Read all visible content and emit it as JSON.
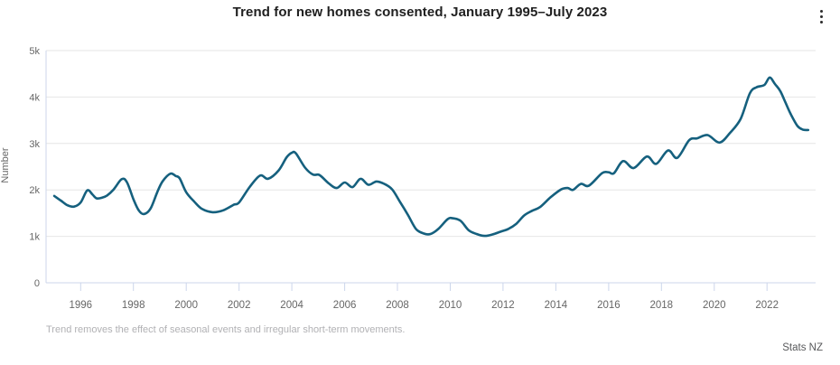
{
  "header": {
    "title": "Trend for new homes consented, January 1995–July 2023",
    "menu_icon": "kebab-menu-icon"
  },
  "chart_data": {
    "type": "line",
    "title": "Trend for new homes consented, January 1995–July 2023",
    "xlabel": "",
    "ylabel": "Number",
    "xlim": [
      1994.69,
      2023.84
    ],
    "ylim": [
      0,
      5000
    ],
    "grid": true,
    "legend": "none",
    "x_ticks": [
      1996,
      1998,
      2000,
      2002,
      2004,
      2006,
      2008,
      2010,
      2012,
      2014,
      2016,
      2018,
      2020,
      2022
    ],
    "y_ticks": [
      {
        "value": 0,
        "label": "0"
      },
      {
        "value": 1000,
        "label": "1k"
      },
      {
        "value": 2000,
        "label": "2k"
      },
      {
        "value": 3000,
        "label": "3k"
      },
      {
        "value": 4000,
        "label": "4k"
      },
      {
        "value": 5000,
        "label": "5k"
      }
    ],
    "line_color": "#15607E",
    "grid_color": "#e6e6e6",
    "axis_color": "#ccd6eb",
    "series": [
      {
        "name": "Trend for new homes consented",
        "points": [
          [
            1995.0,
            1870
          ],
          [
            1995.25,
            1770
          ],
          [
            1995.5,
            1670
          ],
          [
            1995.75,
            1640
          ],
          [
            1996.0,
            1730
          ],
          [
            1996.25,
            1990
          ],
          [
            1996.45,
            1900
          ],
          [
            1996.6,
            1820
          ],
          [
            1996.8,
            1830
          ],
          [
            1997.0,
            1880
          ],
          [
            1997.25,
            2010
          ],
          [
            1997.55,
            2230
          ],
          [
            1997.75,
            2170
          ],
          [
            1998.0,
            1800
          ],
          [
            1998.2,
            1560
          ],
          [
            1998.4,
            1480
          ],
          [
            1998.65,
            1600
          ],
          [
            1998.9,
            1950
          ],
          [
            1999.1,
            2180
          ],
          [
            1999.4,
            2350
          ],
          [
            1999.6,
            2300
          ],
          [
            1999.75,
            2250
          ],
          [
            2000.0,
            1950
          ],
          [
            2000.3,
            1750
          ],
          [
            2000.6,
            1590
          ],
          [
            2001.0,
            1520
          ],
          [
            2001.4,
            1560
          ],
          [
            2001.8,
            1680
          ],
          [
            2002.0,
            1730
          ],
          [
            2002.4,
            2060
          ],
          [
            2002.8,
            2310
          ],
          [
            2003.1,
            2240
          ],
          [
            2003.5,
            2420
          ],
          [
            2003.8,
            2700
          ],
          [
            2004.0,
            2800
          ],
          [
            2004.15,
            2790
          ],
          [
            2004.5,
            2480
          ],
          [
            2004.8,
            2330
          ],
          [
            2005.05,
            2320
          ],
          [
            2005.4,
            2140
          ],
          [
            2005.7,
            2040
          ],
          [
            2006.0,
            2160
          ],
          [
            2006.3,
            2060
          ],
          [
            2006.6,
            2240
          ],
          [
            2006.9,
            2110
          ],
          [
            2007.2,
            2180
          ],
          [
            2007.5,
            2130
          ],
          [
            2007.8,
            2010
          ],
          [
            2008.1,
            1740
          ],
          [
            2008.4,
            1460
          ],
          [
            2008.7,
            1160
          ],
          [
            2009.0,
            1060
          ],
          [
            2009.25,
            1050
          ],
          [
            2009.55,
            1160
          ],
          [
            2009.9,
            1370
          ],
          [
            2010.1,
            1390
          ],
          [
            2010.4,
            1330
          ],
          [
            2010.7,
            1130
          ],
          [
            2011.0,
            1050
          ],
          [
            2011.3,
            1010
          ],
          [
            2011.6,
            1040
          ],
          [
            2011.9,
            1100
          ],
          [
            2012.2,
            1160
          ],
          [
            2012.5,
            1270
          ],
          [
            2012.8,
            1450
          ],
          [
            2013.1,
            1550
          ],
          [
            2013.4,
            1630
          ],
          [
            2013.8,
            1840
          ],
          [
            2014.2,
            2010
          ],
          [
            2014.45,
            2040
          ],
          [
            2014.65,
            2000
          ],
          [
            2014.95,
            2130
          ],
          [
            2015.25,
            2090
          ],
          [
            2015.75,
            2360
          ],
          [
            2016.0,
            2380
          ],
          [
            2016.2,
            2360
          ],
          [
            2016.55,
            2620
          ],
          [
            2016.95,
            2470
          ],
          [
            2017.45,
            2720
          ],
          [
            2017.8,
            2560
          ],
          [
            2018.25,
            2850
          ],
          [
            2018.6,
            2690
          ],
          [
            2019.05,
            3070
          ],
          [
            2019.35,
            3110
          ],
          [
            2019.75,
            3180
          ],
          [
            2020.2,
            3020
          ],
          [
            2020.6,
            3230
          ],
          [
            2021.0,
            3530
          ],
          [
            2021.35,
            4080
          ],
          [
            2021.6,
            4210
          ],
          [
            2021.9,
            4260
          ],
          [
            2022.1,
            4420
          ],
          [
            2022.3,
            4280
          ],
          [
            2022.5,
            4130
          ],
          [
            2022.7,
            3880
          ],
          [
            2022.9,
            3630
          ],
          [
            2023.15,
            3380
          ],
          [
            2023.35,
            3300
          ],
          [
            2023.56,
            3290
          ]
        ]
      }
    ]
  },
  "footer": {
    "note": "Trend removes the effect of seasonal events and irregular short-term movements.",
    "source": "Stats NZ"
  }
}
